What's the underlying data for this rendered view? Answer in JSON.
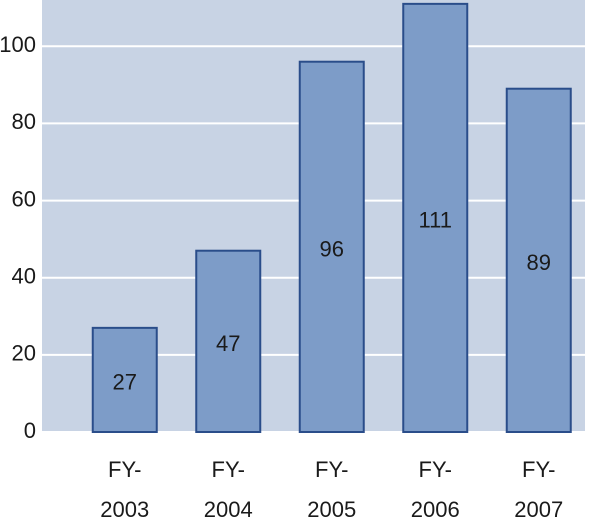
{
  "chart_data": {
    "type": "bar",
    "categories": [
      "FY- 2003",
      "FY- 2004",
      "FY- 2005",
      "FY- 2006",
      "FY- 2007"
    ],
    "values": [
      27,
      47,
      96,
      111,
      89
    ],
    "color": "#7d9cc8",
    "edge_color": "#2a4d8a",
    "background": "#c8d3e4",
    "ylim": [
      0,
      112
    ],
    "yticks": [
      0,
      20,
      40,
      60,
      80,
      100
    ],
    "grid": true
  }
}
